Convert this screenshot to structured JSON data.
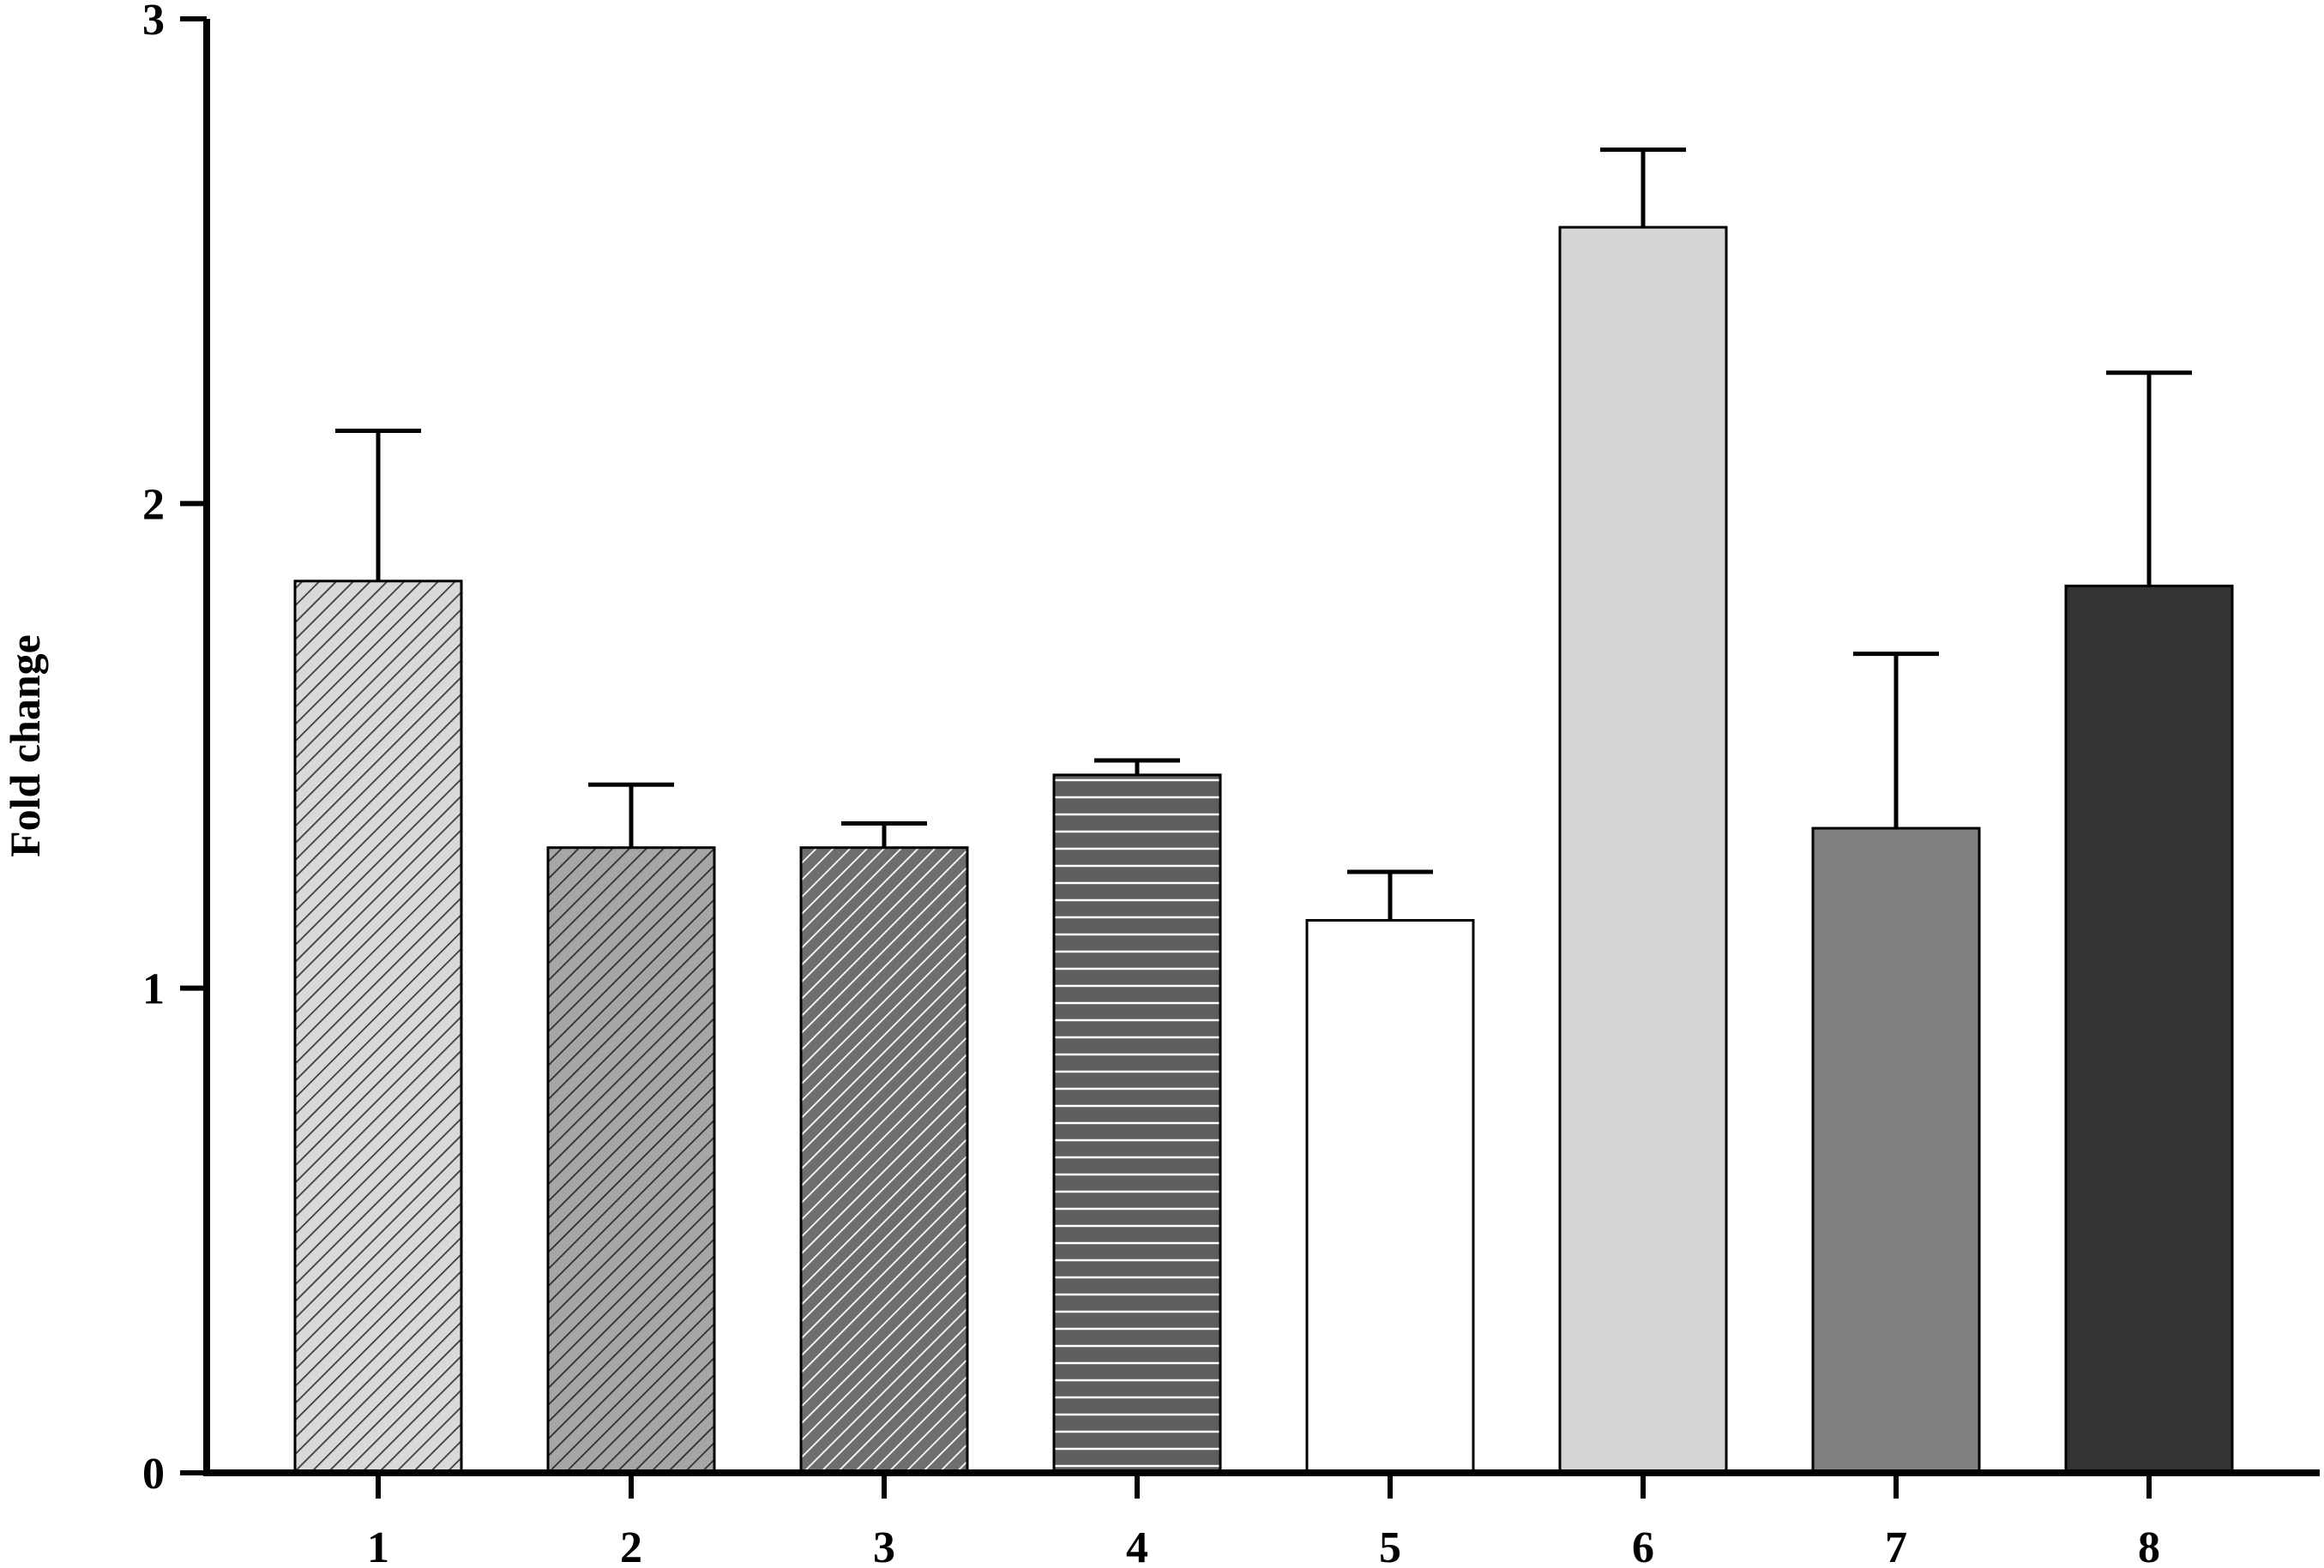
{
  "chart_data": {
    "type": "bar",
    "title": "",
    "xlabel": "",
    "ylabel": "Fold change",
    "ylim": [
      0,
      3
    ],
    "yticks": [
      0,
      1,
      2,
      3
    ],
    "categories": [
      "1",
      "2",
      "3",
      "4",
      "5",
      "6",
      "7",
      "8"
    ],
    "values": [
      1.84,
      1.29,
      1.29,
      1.44,
      1.14,
      2.57,
      1.33,
      1.83
    ],
    "error_upper": [
      0.31,
      0.13,
      0.05,
      0.03,
      0.1,
      0.16,
      0.36,
      0.44
    ],
    "bar_styles": [
      {
        "pattern": "diagonal-hatch",
        "fill": "#d9d9d9",
        "line": "#3a3a3a"
      },
      {
        "pattern": "diagonal-hatch",
        "fill": "#a6a6a6",
        "line": "#2e2e2e"
      },
      {
        "pattern": "diagonal-hatch",
        "fill": "#6e6e6e",
        "line": "#ffffff"
      },
      {
        "pattern": "horizontal-lines",
        "fill": "#5e5e5e",
        "line": "#ffffff"
      },
      {
        "pattern": "solid",
        "fill": "#ffffff"
      },
      {
        "pattern": "solid",
        "fill": "#d6d6d6"
      },
      {
        "pattern": "solid",
        "fill": "#808080"
      },
      {
        "pattern": "solid",
        "fill": "#333333"
      }
    ],
    "grid": false,
    "legend": "none"
  }
}
